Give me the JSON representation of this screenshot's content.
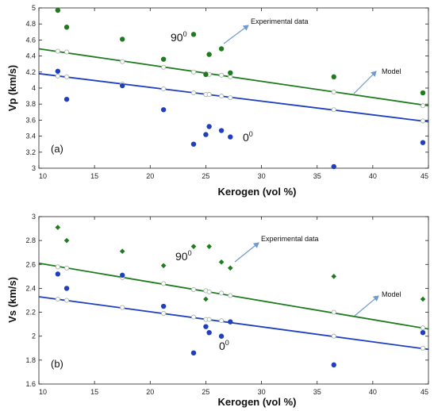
{
  "chart_data": [
    {
      "type": "scatter",
      "panel_label": "(a)",
      "xlabel": "Kerogen (vol %)",
      "ylabel": "Vp (km/s)",
      "xlim": [
        10,
        45
      ],
      "ylim": [
        3,
        5
      ],
      "xticks": [
        "10",
        "15",
        "20",
        "25",
        "30",
        "35",
        "40",
        "45"
      ],
      "yticks": [
        "3",
        "3.2",
        "3.4",
        "3.6",
        "3.8",
        "4",
        "4.2",
        "4.4",
        "4.6",
        "4.8",
        "5"
      ],
      "grid": false,
      "annotations": {
        "experimental": "Experimental data",
        "model": "Model",
        "deg90": "90",
        "deg0": "0",
        "deg_sup": "0"
      },
      "series": [
        {
          "kind": "experimental",
          "color": "#1e7b1e",
          "marker": "dot",
          "x": [
            11.7,
            12.5,
            17.5,
            21.2,
            23.9,
            25.0,
            25.3,
            26.4,
            27.2,
            36.5,
            44.5
          ],
          "y": [
            4.97,
            4.76,
            4.61,
            4.36,
            4.67,
            4.17,
            4.42,
            4.49,
            4.19,
            4.14,
            3.94
          ]
        },
        {
          "kind": "experimental",
          "color": "#1f3fbf",
          "marker": "dot",
          "x": [
            11.7,
            12.5,
            17.5,
            21.2,
            23.9,
            25.0,
            25.3,
            26.4,
            27.2,
            36.5,
            44.5
          ],
          "y": [
            4.21,
            3.86,
            4.03,
            3.73,
            3.3,
            3.42,
            3.52,
            3.47,
            3.39,
            3.02,
            3.32
          ]
        },
        {
          "kind": "model",
          "color": "#1e7b1e",
          "marker": "open-circle",
          "fit": [
            [
              10,
              4.49
            ],
            [
              45,
              3.78
            ]
          ],
          "x": [
            11.7,
            12.5,
            17.5,
            21.2,
            23.9,
            25.0,
            25.3,
            26.4,
            27.2,
            36.5,
            44.5
          ],
          "y": [
            4.46,
            4.45,
            4.33,
            4.26,
            4.2,
            4.18,
            4.17,
            4.16,
            4.14,
            3.95,
            3.78
          ]
        },
        {
          "kind": "model",
          "color": "#1f3fbf",
          "marker": "open-circle",
          "fit": [
            [
              10,
              4.18
            ],
            [
              45,
              3.58
            ]
          ],
          "x": [
            11.7,
            12.5,
            17.5,
            21.2,
            23.9,
            25.0,
            25.3,
            26.4,
            27.2,
            36.5,
            44.5
          ],
          "y": [
            4.15,
            4.14,
            4.05,
            3.99,
            3.94,
            3.92,
            3.92,
            3.9,
            3.88,
            3.73,
            3.59
          ]
        }
      ]
    },
    {
      "type": "scatter",
      "panel_label": "(b)",
      "xlabel": "Kerogen (vol %)",
      "ylabel": "Vs (km/s)",
      "xlim": [
        10,
        45
      ],
      "ylim": [
        1.6,
        3
      ],
      "xticks": [
        "10",
        "15",
        "20",
        "25",
        "30",
        "35",
        "40",
        "45"
      ],
      "yticks": [
        "1.6",
        "1.8",
        "2",
        "2.2",
        "2.4",
        "2.6",
        "2.8",
        "3"
      ],
      "grid": false,
      "annotations": {
        "experimental": "Experimental data",
        "model": "Model",
        "deg90": "90",
        "deg0": "0",
        "deg_sup": "0"
      },
      "series": [
        {
          "kind": "experimental",
          "color": "#1e7b1e",
          "marker": "diamond",
          "x": [
            11.7,
            12.5,
            17.5,
            21.2,
            23.9,
            25.0,
            25.3,
            26.4,
            27.2,
            36.5,
            44.5
          ],
          "y": [
            2.91,
            2.8,
            2.71,
            2.59,
            2.75,
            2.31,
            2.75,
            2.62,
            2.57,
            2.5,
            2.31
          ]
        },
        {
          "kind": "experimental",
          "color": "#1f3fbf",
          "marker": "dot",
          "x": [
            11.7,
            12.5,
            17.5,
            21.2,
            23.9,
            25.0,
            25.3,
            26.4,
            27.2,
            36.5,
            44.5
          ],
          "y": [
            2.52,
            2.4,
            2.51,
            2.25,
            1.86,
            2.08,
            2.03,
            2.0,
            2.12,
            1.76,
            2.03
          ]
        },
        {
          "kind": "model",
          "color": "#1e7b1e",
          "marker": "open-circle",
          "fit": [
            [
              10,
              2.61
            ],
            [
              45,
              2.06
            ]
          ],
          "x": [
            11.7,
            12.5,
            17.5,
            21.2,
            23.9,
            25.0,
            25.3,
            26.4,
            27.2,
            36.5,
            44.5
          ],
          "y": [
            2.58,
            2.57,
            2.49,
            2.44,
            2.39,
            2.38,
            2.37,
            2.36,
            2.34,
            2.2,
            2.07
          ]
        },
        {
          "kind": "model",
          "color": "#1f3fbf",
          "marker": "open-circle",
          "fit": [
            [
              10,
              2.33
            ],
            [
              45,
              1.89
            ]
          ],
          "x": [
            11.7,
            12.5,
            17.5,
            21.2,
            23.9,
            25.0,
            25.3,
            26.4,
            27.2,
            36.5,
            44.5
          ],
          "y": [
            2.31,
            2.3,
            2.24,
            2.19,
            2.16,
            2.14,
            2.14,
            2.13,
            2.12,
            2.0,
            1.9
          ]
        }
      ]
    }
  ]
}
